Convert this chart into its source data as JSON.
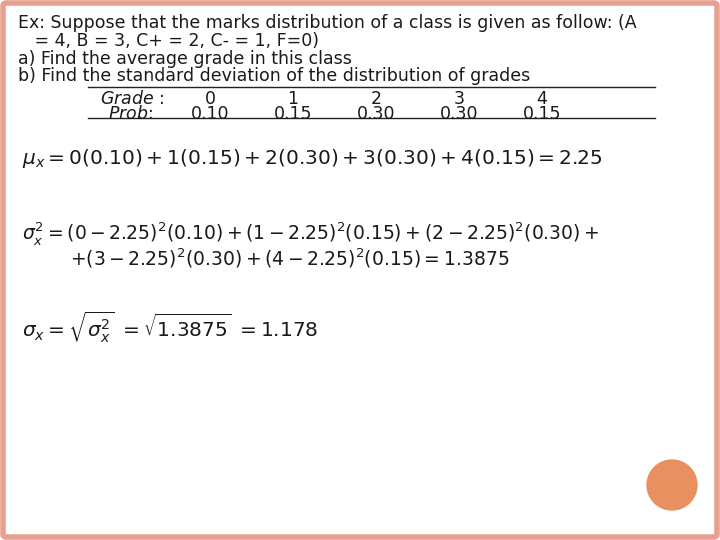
{
  "background_color": "#ffffff",
  "border_color": "#e8a090",
  "title_line1": "Ex: Suppose that the marks distribution of a class is given as follow: (A",
  "title_line2": "   = 4, B = 3, C+ = 2, C- = 1, F=0)",
  "part_a": "a) Find the average grade in this class",
  "part_b": "b) Find the standard deviation of the distribution of grades",
  "grade_label": "Grade :",
  "prob_label": "Prob:",
  "grade_vals": [
    "0",
    "1",
    "2",
    "3",
    "4"
  ],
  "prob_vals": [
    "0.10",
    "0.15",
    "0.30",
    "0.30",
    "0.15"
  ],
  "font_size_text": 12.5,
  "font_size_formula": 13.5,
  "font_size_table": 12.5,
  "orange_dot_color": "#e89060",
  "text_color": "#1a1a1a",
  "line_color": "#222222",
  "border_linewidth": 4
}
